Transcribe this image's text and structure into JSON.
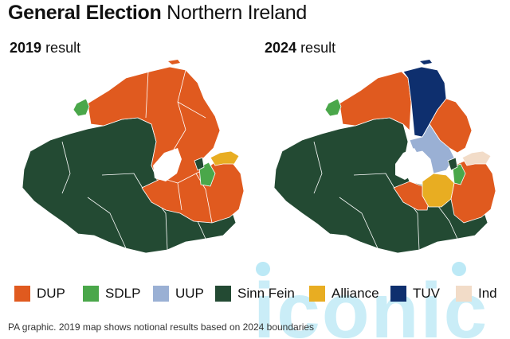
{
  "header": {
    "title_bold": "General Election",
    "title_rest": "Northern Ireland"
  },
  "maps": [
    {
      "year": "2019",
      "suffix": "result"
    },
    {
      "year": "2024",
      "suffix": "result"
    }
  ],
  "colors": {
    "DUP": "#e05a1f",
    "SDLP": "#4aa74a",
    "UUP": "#9ab0d4",
    "SinnFein": "#234a33",
    "Alliance": "#e8ad22",
    "TUV": "#0e2f6e",
    "Ind": "#f2dcc8",
    "watermark": "#9fe0f2"
  },
  "legend": [
    {
      "label": "DUP",
      "color": "#e05a1f"
    },
    {
      "label": "SDLP",
      "color": "#4aa74a"
    },
    {
      "label": "UUP",
      "color": "#9ab0d4"
    },
    {
      "label": "Sinn Fein",
      "color": "#234a33"
    },
    {
      "label": "Alliance",
      "color": "#e8ad22"
    },
    {
      "label": "TUV",
      "color": "#0e2f6e"
    },
    {
      "label": "Ind",
      "color": "#f2dcc8"
    }
  ],
  "footer": {
    "note": "PA graphic. 2019 map shows notional results based on 2024 boundaries"
  },
  "watermark": {
    "text": "iconic"
  }
}
